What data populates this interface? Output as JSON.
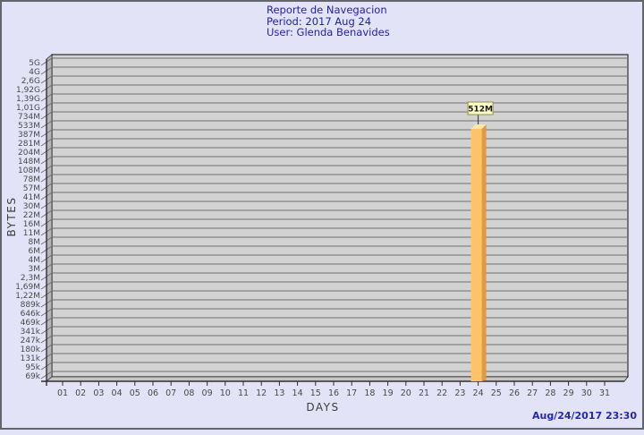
{
  "header": {
    "title": "Reporte de Navegacion",
    "period": "Period: 2017 Aug 24",
    "user": "User: Glenda Benavides"
  },
  "footer": {
    "timestamp": "Aug/24/2017 23:30"
  },
  "chart_data": {
    "type": "bar",
    "title": "Reporte de Navegacion",
    "subtitle": "Period: 2017 Aug 24 — User: Glenda Benavides",
    "xlabel": "DAYS",
    "ylabel": "BYTES",
    "y_scale": "log",
    "grid": true,
    "style_3d": true,
    "y_tick_labels": [
      "5G",
      "4G",
      "2,6G",
      "1,92G",
      "1,39G",
      "1,01G",
      "734M",
      "533M",
      "387M",
      "281M",
      "204M",
      "148M",
      "108M",
      "78M",
      "57M",
      "41M",
      "30M",
      "22M",
      "16M",
      "11M",
      "8M",
      "6M",
      "4M",
      "3M",
      "2,3M",
      "1,69M",
      "1,22M",
      "889k",
      "646k",
      "469k",
      "341k",
      "247k",
      "180k",
      "131k",
      "95k",
      "69k"
    ],
    "x_tick_labels": [
      "01",
      "02",
      "03",
      "04",
      "05",
      "06",
      "07",
      "08",
      "09",
      "10",
      "11",
      "12",
      "13",
      "14",
      "15",
      "16",
      "17",
      "18",
      "19",
      "20",
      "21",
      "22",
      "23",
      "24",
      "25",
      "26",
      "27",
      "28",
      "29",
      "30",
      "31"
    ],
    "bars": [
      {
        "day": "24",
        "value_label": "512M"
      }
    ]
  },
  "colors": {
    "page_bg": "#E3E3F7",
    "page_border": "#64646C",
    "wall": "#D2D2D2",
    "wall_side": "#B5B5B5",
    "floor": "#C6C6C6",
    "grid": "#707070",
    "axis": "#2E2E2E",
    "tick_label": "#4A4A4A",
    "axis_title": "#3C3C3C",
    "title_text": "#2222AA",
    "timestamp_text": "#2626B2",
    "bar_face": "#FFC368",
    "bar_side": "#E09B40",
    "bar_top": "#FFE5A8",
    "callout_bg": "#FFFFC8",
    "callout_border": "#92923A",
    "callout_text": "#1A1A1A"
  }
}
